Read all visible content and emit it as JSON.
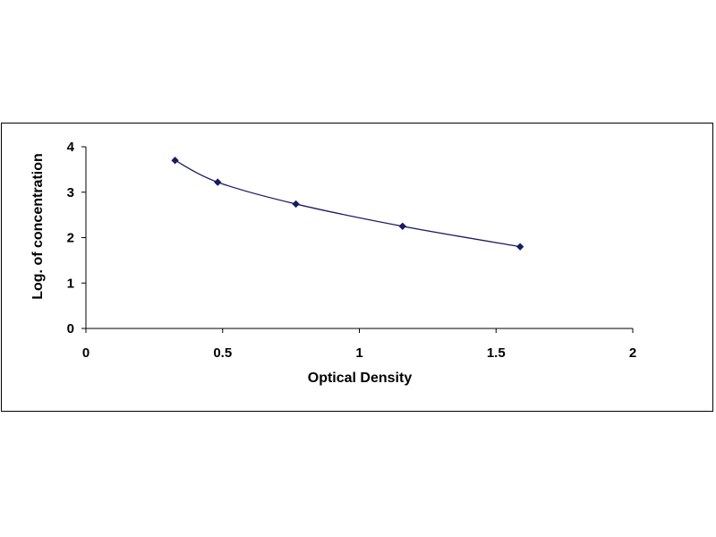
{
  "chart_data": {
    "type": "scatter",
    "title": "",
    "xlabel": "Optical Density",
    "ylabel": "Log. of concentration",
    "xlim": [
      0,
      2
    ],
    "ylim": [
      0,
      4
    ],
    "x_ticks": [
      "0",
      "0.5",
      "1",
      "1.5",
      "2"
    ],
    "y_ticks": [
      "0",
      "1",
      "2",
      "3",
      "4"
    ],
    "grid": false,
    "legend": "none",
    "marker": "diamond",
    "line": "smooth",
    "color": "#1a1a5e",
    "series": [
      {
        "x": [
          0.326,
          0.482,
          0.768,
          1.158,
          1.588
        ],
        "y": [
          3.7,
          3.22,
          2.74,
          2.25,
          1.8
        ]
      }
    ]
  }
}
